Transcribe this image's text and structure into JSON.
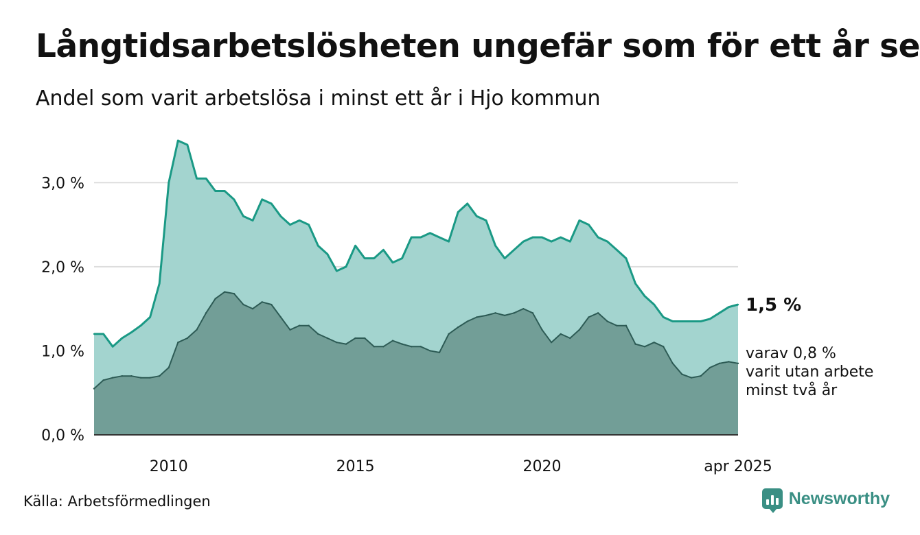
{
  "title": "Långtidsarbetslösheten ungefär som för ett år sen",
  "subtitle": "Andel som varit arbetslösa i minst ett år i Hjo kommun",
  "source": "Källa: Arbetsförmedlingen",
  "brand": "Newsworthy",
  "colors": {
    "total_line": "#1a9985",
    "total_fill": "#a3d4cf",
    "two_year_line": "#2d5b55",
    "two_year_fill": "#729e97",
    "grid": "#dddddd",
    "brand": "#3a8f84"
  },
  "chart_data": {
    "type": "area",
    "x_range": [
      2008.0,
      2025.25
    ],
    "ylim": [
      0,
      3.5
    ],
    "y_ticks": [
      {
        "value": 0,
        "label": "0,0 %"
      },
      {
        "value": 1,
        "label": "1,0 %"
      },
      {
        "value": 2,
        "label": "2,0 %"
      },
      {
        "value": 3,
        "label": "3,0 %"
      }
    ],
    "x_ticks": [
      {
        "value": 2010,
        "label": "2010"
      },
      {
        "value": 2015,
        "label": "2015"
      },
      {
        "value": 2020,
        "label": "2020"
      },
      {
        "value": 2025.25,
        "label": "apr 2025"
      }
    ],
    "grid": true,
    "end_labels": {
      "total": "1,5 %",
      "two_year_lines": [
        "varav 0,8 %",
        "varit utan arbete",
        "minst två år"
      ]
    },
    "series": [
      {
        "key": "total",
        "x": [
          2008.0,
          2008.25,
          2008.5,
          2008.75,
          2009.0,
          2009.25,
          2009.5,
          2009.75,
          2010.0,
          2010.25,
          2010.5,
          2010.75,
          2011.0,
          2011.25,
          2011.5,
          2011.75,
          2012.0,
          2012.25,
          2012.5,
          2012.75,
          2013.0,
          2013.25,
          2013.5,
          2013.75,
          2014.0,
          2014.25,
          2014.5,
          2014.75,
          2015.0,
          2015.25,
          2015.5,
          2015.75,
          2016.0,
          2016.25,
          2016.5,
          2016.75,
          2017.0,
          2017.25,
          2017.5,
          2017.75,
          2018.0,
          2018.25,
          2018.5,
          2018.75,
          2019.0,
          2019.25,
          2019.5,
          2019.75,
          2020.0,
          2020.25,
          2020.5,
          2020.75,
          2021.0,
          2021.25,
          2021.5,
          2021.75,
          2022.0,
          2022.25,
          2022.5,
          2022.75,
          2023.0,
          2023.25,
          2023.5,
          2023.75,
          2024.0,
          2024.25,
          2024.5,
          2024.75,
          2025.0,
          2025.25
        ],
        "values": [
          1.2,
          1.2,
          1.05,
          1.15,
          1.22,
          1.3,
          1.4,
          1.8,
          3.0,
          3.5,
          3.45,
          3.05,
          3.05,
          2.9,
          2.9,
          2.8,
          2.6,
          2.55,
          2.8,
          2.75,
          2.6,
          2.5,
          2.55,
          2.5,
          2.25,
          2.15,
          1.95,
          2.0,
          2.25,
          2.1,
          2.1,
          2.2,
          2.05,
          2.1,
          2.35,
          2.35,
          2.4,
          2.35,
          2.3,
          2.65,
          2.75,
          2.6,
          2.55,
          2.25,
          2.1,
          2.2,
          2.3,
          2.35,
          2.35,
          2.3,
          2.35,
          2.3,
          2.55,
          2.5,
          2.35,
          2.3,
          2.2,
          2.1,
          1.8,
          1.65,
          1.55,
          1.4,
          1.35,
          1.35,
          1.35,
          1.35,
          1.38,
          1.45,
          1.52,
          1.55
        ]
      },
      {
        "key": "two_year",
        "x": [
          2008.0,
          2008.25,
          2008.5,
          2008.75,
          2009.0,
          2009.25,
          2009.5,
          2009.75,
          2010.0,
          2010.25,
          2010.5,
          2010.75,
          2011.0,
          2011.25,
          2011.5,
          2011.75,
          2012.0,
          2012.25,
          2012.5,
          2012.75,
          2013.0,
          2013.25,
          2013.5,
          2013.75,
          2014.0,
          2014.25,
          2014.5,
          2014.75,
          2015.0,
          2015.25,
          2015.5,
          2015.75,
          2016.0,
          2016.25,
          2016.5,
          2016.75,
          2017.0,
          2017.25,
          2017.5,
          2017.75,
          2018.0,
          2018.25,
          2018.5,
          2018.75,
          2019.0,
          2019.25,
          2019.5,
          2019.75,
          2020.0,
          2020.25,
          2020.5,
          2020.75,
          2021.0,
          2021.25,
          2021.5,
          2021.75,
          2022.0,
          2022.25,
          2022.5,
          2022.75,
          2023.0,
          2023.25,
          2023.5,
          2023.75,
          2024.0,
          2024.25,
          2024.5,
          2024.75,
          2025.0,
          2025.25
        ],
        "values": [
          0.55,
          0.65,
          0.68,
          0.7,
          0.7,
          0.68,
          0.68,
          0.7,
          0.8,
          1.1,
          1.15,
          1.25,
          1.45,
          1.62,
          1.7,
          1.68,
          1.55,
          1.5,
          1.58,
          1.55,
          1.4,
          1.25,
          1.3,
          1.3,
          1.2,
          1.15,
          1.1,
          1.08,
          1.15,
          1.15,
          1.05,
          1.05,
          1.12,
          1.08,
          1.05,
          1.05,
          1.0,
          0.98,
          1.2,
          1.28,
          1.35,
          1.4,
          1.42,
          1.45,
          1.42,
          1.45,
          1.5,
          1.45,
          1.25,
          1.1,
          1.2,
          1.15,
          1.25,
          1.4,
          1.45,
          1.35,
          1.3,
          1.3,
          1.08,
          1.05,
          1.1,
          1.05,
          0.85,
          0.72,
          0.68,
          0.7,
          0.8,
          0.85,
          0.87,
          0.85
        ]
      }
    ]
  }
}
